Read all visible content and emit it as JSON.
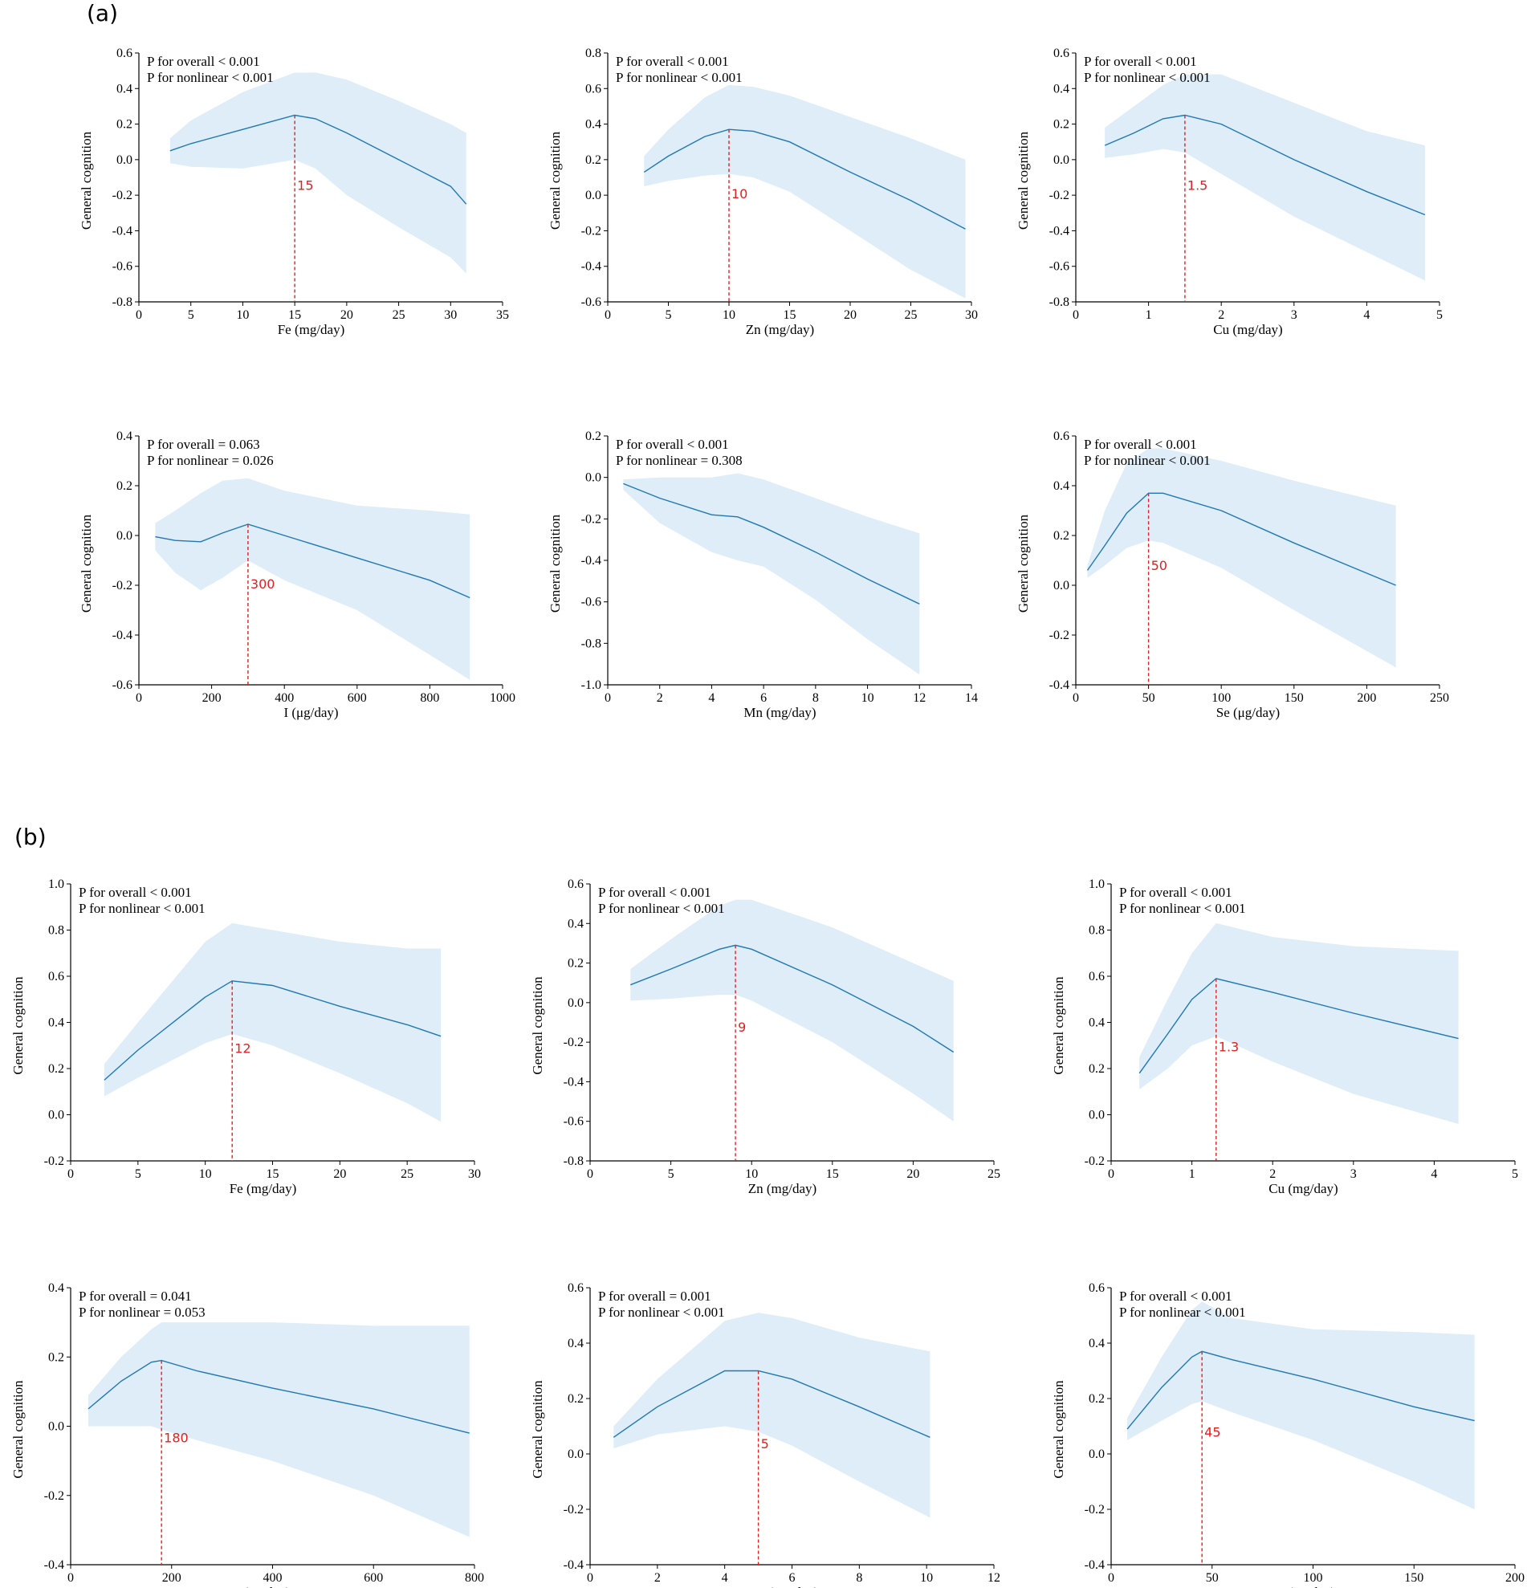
{
  "panels": {
    "a": "(a)",
    "b": "(b)"
  },
  "chart_data": [
    {
      "type": "line",
      "group": "a",
      "title": "",
      "xlabel": "Fe (mg/day)",
      "ylabel": "General cognition",
      "xlim": [
        0,
        35
      ],
      "ylim": [
        -0.8,
        0.6
      ],
      "xticks": [
        0,
        5,
        10,
        15,
        20,
        25,
        30,
        35
      ],
      "yticks": [
        -0.8,
        -0.6,
        -0.4,
        -0.2,
        0.0,
        0.2,
        0.4,
        0.6
      ],
      "annotations": [
        "P for overall < 0.001",
        "P for nonlinear < 0.001"
      ],
      "ref_x": 15,
      "ref_label": "15",
      "x": [
        3,
        5,
        10,
        15,
        17,
        20,
        25,
        30,
        31.5
      ],
      "y": [
        0.05,
        0.09,
        0.17,
        0.25,
        0.23,
        0.15,
        0.0,
        -0.15,
        -0.25
      ],
      "lower": [
        -0.02,
        -0.04,
        -0.05,
        0.0,
        -0.05,
        -0.2,
        -0.38,
        -0.55,
        -0.64
      ],
      "upper": [
        0.12,
        0.22,
        0.38,
        0.49,
        0.49,
        0.45,
        0.33,
        0.2,
        0.15
      ]
    },
    {
      "type": "line",
      "group": "a",
      "title": "",
      "xlabel": "Zn (mg/day)",
      "ylabel": "General cognition",
      "xlim": [
        0,
        30
      ],
      "ylim": [
        -0.6,
        0.8
      ],
      "xticks": [
        0,
        5,
        10,
        15,
        20,
        25,
        30
      ],
      "yticks": [
        -0.6,
        -0.4,
        -0.2,
        0.0,
        0.2,
        0.4,
        0.6,
        0.8
      ],
      "annotations": [
        "P for overall < 0.001",
        "P for nonlinear < 0.001"
      ],
      "ref_x": 10,
      "ref_label": "10",
      "x": [
        3,
        5,
        8,
        10,
        12,
        15,
        20,
        25,
        29.5
      ],
      "y": [
        0.13,
        0.22,
        0.33,
        0.37,
        0.36,
        0.3,
        0.13,
        -0.03,
        -0.19
      ],
      "lower": [
        0.05,
        0.08,
        0.11,
        0.12,
        0.1,
        0.02,
        -0.2,
        -0.42,
        -0.58
      ],
      "upper": [
        0.22,
        0.37,
        0.55,
        0.62,
        0.61,
        0.56,
        0.44,
        0.32,
        0.2
      ]
    },
    {
      "type": "line",
      "group": "a",
      "title": "",
      "xlabel": "Cu (mg/day)",
      "ylabel": "General cognition",
      "xlim": [
        0,
        5
      ],
      "ylim": [
        -0.8,
        0.6
      ],
      "xticks": [
        0,
        1,
        2,
        3,
        4,
        5
      ],
      "yticks": [
        -0.8,
        -0.6,
        -0.4,
        -0.2,
        0.0,
        0.2,
        0.4,
        0.6
      ],
      "annotations": [
        "P for overall < 0.001",
        "P for nonlinear < 0.001"
      ],
      "ref_x": 1.5,
      "ref_label": "1.5",
      "x": [
        0.4,
        0.8,
        1.2,
        1.5,
        2.0,
        3.0,
        4.0,
        4.8
      ],
      "y": [
        0.08,
        0.15,
        0.23,
        0.25,
        0.2,
        0.0,
        -0.18,
        -0.31
      ],
      "lower": [
        0.01,
        0.03,
        0.06,
        0.04,
        -0.08,
        -0.32,
        -0.52,
        -0.68
      ],
      "upper": [
        0.18,
        0.3,
        0.42,
        0.48,
        0.48,
        0.32,
        0.16,
        0.08
      ]
    },
    {
      "type": "line",
      "group": "a",
      "title": "",
      "xlabel": "I (μg/day)",
      "ylabel": "General cognition",
      "xlim": [
        0,
        1000
      ],
      "ylim": [
        -0.6,
        0.4
      ],
      "xticks": [
        0,
        200,
        400,
        600,
        800,
        1000
      ],
      "yticks": [
        -0.6,
        -0.4,
        -0.2,
        0.0,
        0.2,
        0.4
      ],
      "annotations": [
        "P for overall = 0.063",
        "P for nonlinear = 0.026"
      ],
      "ref_x": 300,
      "ref_label": "300",
      "x": [
        45,
        100,
        170,
        230,
        300,
        400,
        600,
        800,
        910
      ],
      "y": [
        -0.005,
        -0.02,
        -0.025,
        0.01,
        0.045,
        0.0,
        -0.09,
        -0.18,
        -0.25
      ],
      "lower": [
        -0.06,
        -0.15,
        -0.22,
        -0.17,
        -0.1,
        -0.18,
        -0.3,
        -0.48,
        -0.58
      ],
      "upper": [
        0.05,
        0.1,
        0.17,
        0.22,
        0.23,
        0.18,
        0.12,
        0.1,
        0.085
      ]
    },
    {
      "type": "line",
      "group": "a",
      "title": "",
      "xlabel": "Mn (mg/day)",
      "ylabel": "General cognition",
      "xlim": [
        0,
        14
      ],
      "ylim": [
        -1.0,
        0.2
      ],
      "xticks": [
        0,
        2,
        4,
        6,
        8,
        10,
        12,
        14
      ],
      "yticks": [
        -1.0,
        -0.8,
        -0.6,
        -0.4,
        -0.2,
        0.0,
        0.2
      ],
      "annotations": [
        "P for overall < 0.001",
        "P for nonlinear = 0.308"
      ],
      "x": [
        0.6,
        2,
        4,
        5,
        6,
        8,
        10,
        12
      ],
      "y": [
        -0.03,
        -0.1,
        -0.18,
        -0.19,
        -0.24,
        -0.36,
        -0.49,
        -0.61
      ],
      "lower": [
        -0.06,
        -0.22,
        -0.36,
        -0.4,
        -0.43,
        -0.59,
        -0.78,
        -0.95
      ],
      "upper": [
        -0.01,
        0.0,
        0.0,
        0.02,
        -0.01,
        -0.1,
        -0.19,
        -0.27
      ]
    },
    {
      "type": "line",
      "group": "a",
      "title": "",
      "xlabel": "Se (μg/day)",
      "ylabel": "General cognition",
      "xlim": [
        0,
        250
      ],
      "ylim": [
        -0.4,
        0.6
      ],
      "xticks": [
        0,
        50,
        100,
        150,
        200,
        250
      ],
      "yticks": [
        -0.4,
        -0.2,
        0.0,
        0.2,
        0.4,
        0.6
      ],
      "annotations": [
        "P for overall < 0.001",
        "P for nonlinear < 0.001"
      ],
      "ref_x": 50,
      "ref_label": "50",
      "x": [
        8,
        20,
        35,
        50,
        60,
        100,
        150,
        220
      ],
      "y": [
        0.06,
        0.16,
        0.29,
        0.37,
        0.37,
        0.3,
        0.17,
        0.0
      ],
      "lower": [
        0.03,
        0.08,
        0.15,
        0.18,
        0.17,
        0.07,
        -0.1,
        -0.33
      ],
      "upper": [
        0.08,
        0.3,
        0.49,
        0.55,
        0.55,
        0.5,
        0.42,
        0.32
      ]
    },
    {
      "type": "line",
      "group": "b",
      "title": "",
      "xlabel": "Fe (mg/day)",
      "ylabel": "General cognition",
      "xlim": [
        0,
        30
      ],
      "ylim": [
        -0.2,
        1.0
      ],
      "xticks": [
        0,
        5,
        10,
        15,
        20,
        25,
        30
      ],
      "yticks": [
        -0.2,
        0.0,
        0.2,
        0.4,
        0.6,
        0.8,
        1.0
      ],
      "annotations": [
        "P for overall < 0.001",
        "P for nonlinear < 0.001"
      ],
      "ref_x": 12,
      "ref_label": "12",
      "x": [
        2.5,
        5,
        10,
        12,
        15,
        20,
        25,
        27.5
      ],
      "y": [
        0.15,
        0.28,
        0.51,
        0.58,
        0.56,
        0.47,
        0.39,
        0.34
      ],
      "lower": [
        0.08,
        0.16,
        0.31,
        0.35,
        0.3,
        0.18,
        0.05,
        -0.03
      ],
      "upper": [
        0.22,
        0.4,
        0.75,
        0.83,
        0.8,
        0.75,
        0.72,
        0.72
      ]
    },
    {
      "type": "line",
      "group": "b",
      "title": "",
      "xlabel": "Zn (mg/day)",
      "ylabel": "General cognition",
      "xlim": [
        0,
        25
      ],
      "ylim": [
        -0.8,
        0.6
      ],
      "xticks": [
        0,
        5,
        10,
        15,
        20,
        25
      ],
      "yticks": [
        -0.8,
        -0.6,
        -0.4,
        -0.2,
        0.0,
        0.2,
        0.4,
        0.6
      ],
      "annotations": [
        "P for overall < 0.001",
        "P for nonlinear < 0.001"
      ],
      "ref_x": 9,
      "ref_label": "9",
      "x": [
        2.5,
        5,
        8,
        9,
        10,
        15,
        20,
        22.5
      ],
      "y": [
        0.09,
        0.17,
        0.27,
        0.29,
        0.27,
        0.09,
        -0.12,
        -0.25
      ],
      "lower": [
        0.01,
        0.02,
        0.04,
        0.04,
        0.01,
        -0.2,
        -0.46,
        -0.6
      ],
      "upper": [
        0.17,
        0.32,
        0.49,
        0.52,
        0.52,
        0.38,
        0.2,
        0.11
      ]
    },
    {
      "type": "line",
      "group": "b",
      "title": "",
      "xlabel": "Cu (mg/day)",
      "ylabel": "General cognition",
      "xlim": [
        0,
        5
      ],
      "ylim": [
        -0.2,
        1.0
      ],
      "xticks": [
        0,
        1,
        2,
        3,
        4,
        5
      ],
      "yticks": [
        -0.2,
        0.0,
        0.2,
        0.4,
        0.6,
        0.8,
        1.0
      ],
      "annotations": [
        "P for overall < 0.001",
        "P for nonlinear < 0.001"
      ],
      "ref_x": 1.3,
      "ref_label": "1.3",
      "x": [
        0.35,
        0.7,
        1.0,
        1.3,
        2.0,
        3.0,
        4.3
      ],
      "y": [
        0.18,
        0.35,
        0.5,
        0.59,
        0.53,
        0.44,
        0.33
      ],
      "lower": [
        0.11,
        0.2,
        0.3,
        0.34,
        0.23,
        0.09,
        -0.04
      ],
      "upper": [
        0.25,
        0.5,
        0.7,
        0.83,
        0.77,
        0.73,
        0.71
      ]
    },
    {
      "type": "line",
      "group": "b",
      "title": "",
      "xlabel": "I (μg/day)",
      "ylabel": "General cognition",
      "xlim": [
        0,
        800
      ],
      "ylim": [
        -0.4,
        0.4
      ],
      "xticks": [
        0,
        200,
        400,
        600,
        800
      ],
      "yticks": [
        -0.4,
        -0.2,
        0.0,
        0.2,
        0.4
      ],
      "annotations": [
        "P for overall = 0.041",
        "P for nonlinear = 0.053"
      ],
      "ref_x": 180,
      "ref_label": "180",
      "x": [
        35,
        100,
        160,
        180,
        250,
        400,
        600,
        790
      ],
      "y": [
        0.05,
        0.13,
        0.185,
        0.19,
        0.16,
        0.11,
        0.05,
        -0.02
      ],
      "lower": [
        0.0,
        0.0,
        0.0,
        -0.01,
        -0.04,
        -0.1,
        -0.2,
        -0.32
      ],
      "upper": [
        0.09,
        0.2,
        0.28,
        0.3,
        0.3,
        0.3,
        0.29,
        0.29
      ]
    },
    {
      "type": "line",
      "group": "b",
      "title": "",
      "xlabel": "Mn (mg/day)",
      "ylabel": "General cognition",
      "xlim": [
        0,
        12
      ],
      "ylim": [
        -0.4,
        0.6
      ],
      "xticks": [
        0,
        2,
        4,
        6,
        8,
        10,
        12
      ],
      "yticks": [
        -0.4,
        -0.2,
        0.0,
        0.2,
        0.4,
        0.6
      ],
      "annotations": [
        "P for overall = 0.001",
        "P for nonlinear < 0.001"
      ],
      "ref_x": 5,
      "ref_label": "5",
      "x": [
        0.7,
        2,
        4,
        5,
        6,
        8,
        10.1
      ],
      "y": [
        0.06,
        0.17,
        0.3,
        0.3,
        0.27,
        0.17,
        0.06
      ],
      "lower": [
        0.02,
        0.07,
        0.1,
        0.08,
        0.03,
        -0.1,
        -0.23
      ],
      "upper": [
        0.1,
        0.27,
        0.48,
        0.51,
        0.49,
        0.42,
        0.37
      ]
    },
    {
      "type": "line",
      "group": "b",
      "title": "",
      "xlabel": "Se (μg/day)",
      "ylabel": "General cognition",
      "xlim": [
        0,
        200
      ],
      "ylim": [
        -0.4,
        0.6
      ],
      "xticks": [
        0,
        50,
        100,
        150,
        200
      ],
      "yticks": [
        -0.4,
        -0.2,
        0.0,
        0.2,
        0.4,
        0.6
      ],
      "annotations": [
        "P for overall < 0.001",
        "P for nonlinear < 0.001"
      ],
      "ref_x": 45,
      "ref_label": "45",
      "x": [
        8,
        25,
        40,
        45,
        60,
        100,
        150,
        180
      ],
      "y": [
        0.09,
        0.24,
        0.35,
        0.37,
        0.34,
        0.27,
        0.17,
        0.12
      ],
      "lower": [
        0.05,
        0.12,
        0.18,
        0.19,
        0.15,
        0.05,
        -0.1,
        -0.2
      ],
      "upper": [
        0.13,
        0.35,
        0.52,
        0.55,
        0.49,
        0.45,
        0.44,
        0.43
      ]
    }
  ]
}
